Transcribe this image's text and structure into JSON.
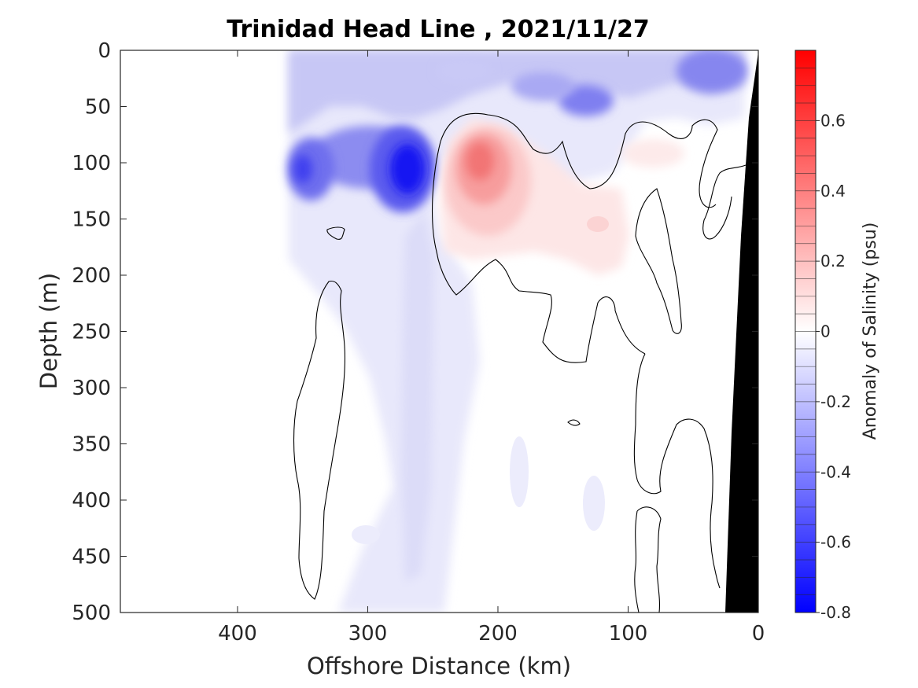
{
  "chart_data": {
    "type": "heatmap",
    "title": "Trinidad Head Line , 2021/11/27",
    "xlabel": "Offshore Distance (km)",
    "ylabel": "Depth (m)",
    "xlim": [
      490,
      0
    ],
    "ylim": [
      0,
      500
    ],
    "xticks": [
      "400",
      "300",
      "200",
      "100",
      "0"
    ],
    "yticks": [
      "0",
      "50",
      "100",
      "150",
      "200",
      "250",
      "300",
      "350",
      "400",
      "450",
      "500"
    ],
    "colorbar": {
      "label": "Anomaly of Salinity (psu)",
      "range": [
        -0.8,
        0.8
      ],
      "ticks": [
        "0.6",
        "0.4",
        "0.2",
        "0",
        "-0.2",
        "-0.4",
        "-0.6",
        "-0.8"
      ],
      "low_color": "#0000ff",
      "mid_color": "#ffffff",
      "high_color": "#ff0000"
    },
    "data_extent_km": 360,
    "anomaly_features": [
      {
        "x": 270,
        "depth": 110,
        "value": -0.55
      },
      {
        "x": 345,
        "depth": 105,
        "value": -0.35
      },
      {
        "x": 215,
        "depth": 95,
        "value": 0.35
      },
      {
        "x": 125,
        "depth": 45,
        "value": -0.3
      },
      {
        "x": 40,
        "depth": 20,
        "value": -0.25
      },
      {
        "x": 270,
        "depth": 350,
        "value": -0.08
      },
      {
        "x": 80,
        "depth": 90,
        "value": 0.06
      }
    ],
    "shelf_color": "#000000"
  }
}
